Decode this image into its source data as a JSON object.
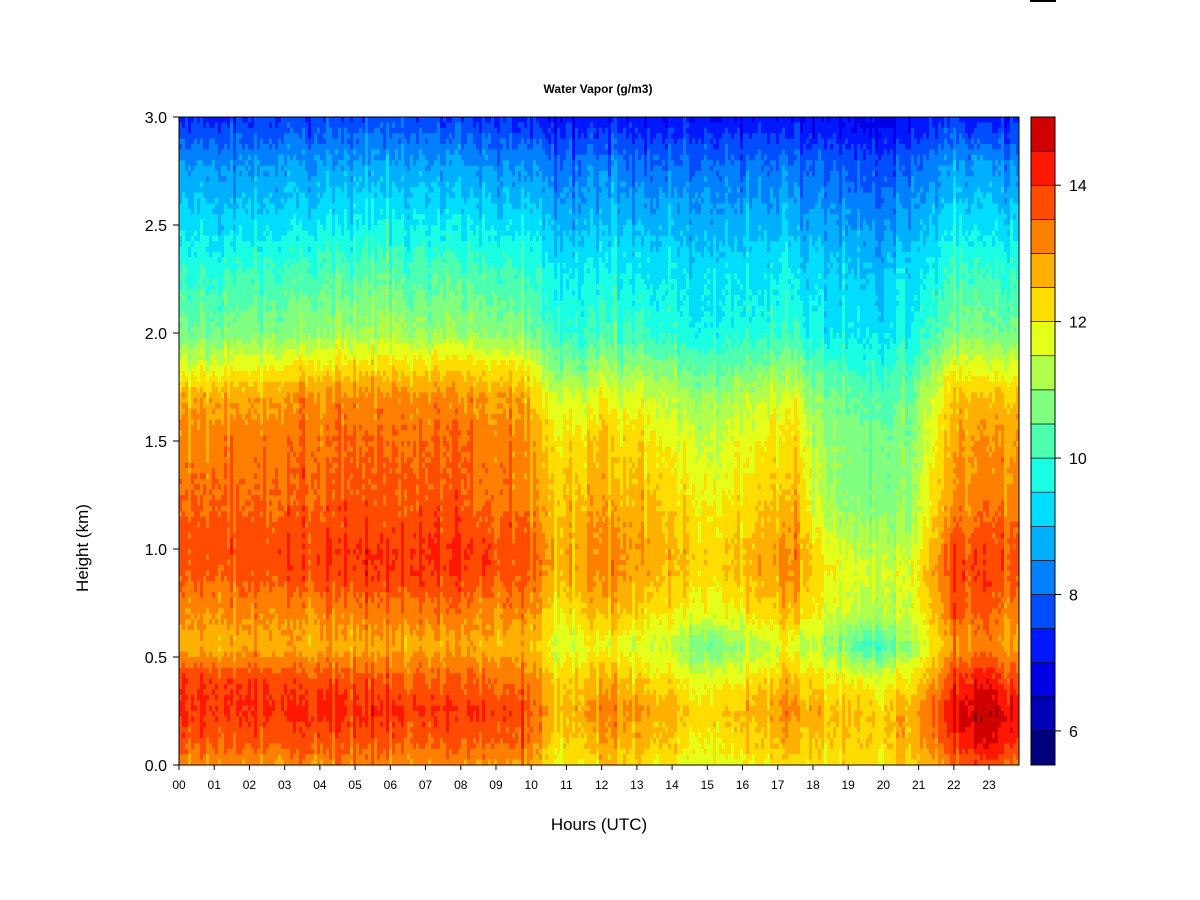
{
  "chart_data": {
    "type": "heatmap",
    "title": "Water Vapor (g/m3)",
    "xlabel": "Hours (UTC)",
    "ylabel": "Height (km)",
    "xlim": [
      0,
      23.85
    ],
    "ylim": [
      0,
      3.0
    ],
    "x_ticks": [
      "00",
      "01",
      "02",
      "03",
      "04",
      "05",
      "06",
      "07",
      "08",
      "09",
      "10",
      "11",
      "12",
      "13",
      "14",
      "15",
      "16",
      "17",
      "18",
      "19",
      "20",
      "21",
      "22",
      "23"
    ],
    "y_ticks": [
      "0.0",
      "0.5",
      "1.0",
      "1.5",
      "2.0",
      "2.5",
      "3.0"
    ],
    "colorbar": {
      "range": [
        5.5,
        15
      ],
      "ticks": [
        "6",
        "8",
        "10",
        "12",
        "14"
      ],
      "levels": [
        5.5,
        6.0,
        6.5,
        7.0,
        7.5,
        8.0,
        8.5,
        9.0,
        9.5,
        10.0,
        10.5,
        11.0,
        11.5,
        12.0,
        12.5,
        13.0,
        13.5,
        14.0,
        14.5,
        15.0
      ],
      "colors": [
        "#00007F",
        "#0000B4",
        "#0000E6",
        "#0018FF",
        "#004CFF",
        "#0080FF",
        "#00B0FF",
        "#00DDFF",
        "#1AFFE4",
        "#4DFFB1",
        "#80FF80",
        "#B1FF4D",
        "#E4FF1A",
        "#FFDD00",
        "#FFB000",
        "#FF8000",
        "#FF4C00",
        "#FF1800",
        "#D10000",
        "#8C0000"
      ]
    },
    "heights_km": [
      0.0,
      0.1,
      0.25,
      0.4,
      0.55,
      0.7,
      0.9,
      1.0,
      1.2,
      1.5,
      1.7,
      1.85,
      2.0,
      2.3,
      2.5,
      2.8,
      3.0
    ],
    "profiles": [
      {
        "hour": 0.0,
        "values": [
          13.0,
          13.5,
          14.0,
          13.8,
          12.6,
          13.0,
          13.6,
          13.7,
          13.5,
          13.2,
          12.8,
          11.5,
          10.5,
          9.7,
          9.2,
          8.3,
          7.3
        ]
      },
      {
        "hour": 2.0,
        "values": [
          13.1,
          13.6,
          14.1,
          13.9,
          12.8,
          13.1,
          13.7,
          13.8,
          13.5,
          13.3,
          12.9,
          11.9,
          10.8,
          10.0,
          9.3,
          8.4,
          7.4
        ]
      },
      {
        "hour": 4.0,
        "values": [
          13.2,
          13.7,
          14.2,
          13.8,
          12.8,
          13.2,
          13.9,
          13.9,
          13.6,
          13.4,
          13.1,
          12.1,
          11.0,
          10.2,
          9.5,
          8.5,
          7.6
        ]
      },
      {
        "hour": 6.0,
        "values": [
          13.2,
          13.6,
          14.1,
          13.6,
          12.8,
          13.3,
          14.0,
          14.0,
          13.7,
          13.5,
          13.2,
          12.3,
          11.2,
          10.3,
          9.6,
          8.6,
          7.7
        ]
      },
      {
        "hour": 8.0,
        "values": [
          13.1,
          13.6,
          14.0,
          13.6,
          12.9,
          13.3,
          14.0,
          14.0,
          13.6,
          13.4,
          13.1,
          12.2,
          11.0,
          10.2,
          9.5,
          8.5,
          7.5
        ]
      },
      {
        "hour": 9.8,
        "values": [
          13.0,
          13.5,
          13.9,
          13.4,
          12.7,
          13.2,
          13.8,
          13.8,
          13.4,
          13.2,
          12.9,
          12.0,
          10.8,
          10.0,
          9.4,
          8.4,
          7.4
        ]
      },
      {
        "hour": 10.8,
        "values": [
          11.8,
          12.2,
          12.5,
          12.3,
          11.6,
          12.0,
          12.6,
          12.6,
          12.4,
          12.0,
          11.4,
          10.6,
          9.9,
          9.4,
          8.8,
          8.0,
          7.0
        ]
      },
      {
        "hour": 12.0,
        "values": [
          12.4,
          12.9,
          13.3,
          12.8,
          11.9,
          12.7,
          13.2,
          13.2,
          12.9,
          12.5,
          11.9,
          11.0,
          10.2,
          9.6,
          9.0,
          8.2,
          7.2
        ]
      },
      {
        "hour": 13.5,
        "values": [
          12.2,
          12.6,
          12.9,
          12.3,
          11.6,
          12.2,
          12.8,
          12.9,
          12.6,
          12.1,
          11.6,
          10.8,
          10.0,
          9.4,
          8.9,
          8.0,
          7.1
        ]
      },
      {
        "hour": 15.0,
        "values": [
          11.6,
          11.9,
          12.2,
          11.6,
          10.4,
          11.6,
          12.2,
          12.2,
          11.9,
          11.4,
          11.0,
          10.3,
          9.6,
          9.2,
          8.7,
          7.9,
          7.0
        ]
      },
      {
        "hour": 16.5,
        "values": [
          12.0,
          12.4,
          12.8,
          12.2,
          11.3,
          12.2,
          12.7,
          12.7,
          12.4,
          11.9,
          11.4,
          10.6,
          9.8,
          9.3,
          8.8,
          8.0,
          7.0
        ]
      },
      {
        "hour": 17.5,
        "values": [
          12.2,
          12.7,
          13.1,
          12.6,
          11.7,
          12.6,
          13.1,
          13.1,
          12.7,
          12.2,
          11.7,
          10.8,
          10.0,
          9.4,
          8.8,
          8.0,
          7.0
        ]
      },
      {
        "hour": 18.5,
        "values": [
          12.2,
          12.4,
          12.6,
          12.0,
          11.0,
          11.5,
          11.9,
          11.6,
          11.0,
          10.9,
          10.6,
          10.1,
          9.5,
          9.1,
          8.6,
          7.8,
          6.9
        ]
      },
      {
        "hour": 19.5,
        "values": [
          12.2,
          12.4,
          12.5,
          11.8,
          10.0,
          11.3,
          11.6,
          11.3,
          10.8,
          10.7,
          10.4,
          9.9,
          9.4,
          9.0,
          8.5,
          7.7,
          6.8
        ]
      },
      {
        "hour": 20.8,
        "values": [
          12.3,
          12.6,
          12.7,
          12.0,
          10.9,
          11.5,
          11.7,
          11.4,
          11.0,
          10.8,
          10.5,
          10.0,
          9.5,
          9.1,
          8.6,
          7.8,
          6.9
        ]
      },
      {
        "hour": 22.0,
        "values": [
          13.4,
          14.0,
          14.5,
          13.9,
          13.1,
          13.6,
          14.0,
          13.9,
          13.2,
          12.9,
          12.6,
          11.8,
          10.8,
          10.1,
          9.5,
          8.6,
          7.5
        ]
      },
      {
        "hour": 22.9,
        "values": [
          13.8,
          14.6,
          15.0,
          14.3,
          13.2,
          13.6,
          13.9,
          13.8,
          13.3,
          13.0,
          12.5,
          11.6,
          10.6,
          10.0,
          9.3,
          8.4,
          7.2
        ]
      },
      {
        "hour": 23.85,
        "values": [
          13.2,
          13.8,
          14.2,
          13.6,
          12.8,
          13.1,
          13.6,
          13.6,
          13.2,
          12.8,
          12.4,
          11.4,
          10.4,
          9.8,
          9.2,
          8.3,
          7.2
        ]
      }
    ]
  }
}
